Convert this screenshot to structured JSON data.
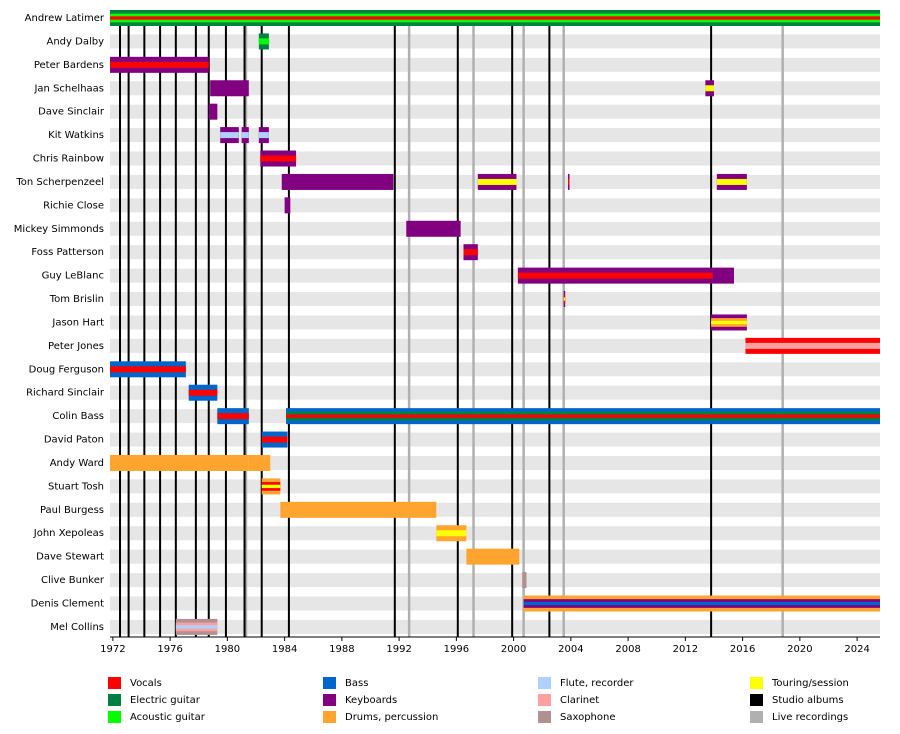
{
  "chart_data": {
    "type": "timeline",
    "xlim": [
      1971.8,
      2025.6
    ],
    "xticks": [
      1972,
      1976,
      1980,
      1984,
      1988,
      1992,
      1996,
      2000,
      2004,
      2008,
      2012,
      2016,
      2020,
      2024
    ],
    "legend": [
      {
        "name": "Vocals",
        "color": "#ff0000"
      },
      {
        "name": "Electric guitar",
        "color": "#008040"
      },
      {
        "name": "Acoustic guitar",
        "color": "#00ff00"
      },
      {
        "name": "Bass",
        "color": "#0066cc"
      },
      {
        "name": "Keyboards",
        "color": "#800080"
      },
      {
        "name": "Drums, percussion",
        "color": "#ffa52f"
      },
      {
        "name": "Flute, recorder",
        "color": "#b0d0ff"
      },
      {
        "name": "Clarinet",
        "color": "#ffa0a0"
      },
      {
        "name": "Saxophone",
        "color": "#b09090"
      },
      {
        "name": "Touring/session",
        "color": "#ffff00"
      },
      {
        "name": "Studio albums",
        "color": "#000000"
      },
      {
        "name": "Live recordings",
        "color": "#b0b0b0"
      }
    ],
    "studio_albums": [
      1972.5,
      1973.1,
      1974.2,
      1975.3,
      1976.4,
      1977.8,
      1978.7,
      1979.9,
      1981.2,
      1982.4,
      1984.3,
      1991.7,
      1996.1,
      1999.9,
      2002.5,
      2013.8
    ],
    "live_recordings": [
      1981.3,
      1992.7,
      1997.2,
      2000.7,
      2003.5,
      2018.8
    ],
    "members": [
      {
        "name": "Andrew Latimer",
        "spans": [
          {
            "start": 1971.8,
            "end": 2025.6,
            "roles": [
              "Electric guitar",
              "Acoustic guitar",
              "Vocals"
            ]
          }
        ]
      },
      {
        "name": "Andy Dalby",
        "spans": [
          {
            "start": 1982.2,
            "end": 1982.9,
            "roles": [
              "Electric guitar",
              "Acoustic guitar"
            ]
          }
        ]
      },
      {
        "name": "Peter Bardens",
        "spans": [
          {
            "start": 1971.8,
            "end": 1978.7,
            "roles": [
              "Keyboards",
              "Vocals"
            ]
          }
        ]
      },
      {
        "name": "Jan Schelhaas",
        "spans": [
          {
            "start": 1978.8,
            "end": 1981.5,
            "roles": [
              "Keyboards"
            ]
          },
          {
            "start": 2013.4,
            "end": 2014.0,
            "roles": [
              "Keyboards",
              "Touring/session"
            ]
          }
        ]
      },
      {
        "name": "Dave Sinclair",
        "spans": [
          {
            "start": 1978.7,
            "end": 1979.3,
            "roles": [
              "Keyboards"
            ]
          }
        ]
      },
      {
        "name": "Kit Watkins",
        "spans": [
          {
            "start": 1979.5,
            "end": 1980.8,
            "roles": [
              "Keyboards",
              "Flute, recorder"
            ]
          },
          {
            "start": 1981.0,
            "end": 1981.5,
            "roles": [
              "Keyboards",
              "Flute, recorder"
            ]
          },
          {
            "start": 1982.2,
            "end": 1982.9,
            "roles": [
              "Keyboards",
              "Flute, recorder"
            ]
          }
        ]
      },
      {
        "name": "Chris Rainbow",
        "spans": [
          {
            "start": 1982.3,
            "end": 1984.8,
            "roles": [
              "Keyboards",
              "Vocals"
            ]
          }
        ]
      },
      {
        "name": "Ton Scherpenzeel",
        "spans": [
          {
            "start": 1983.8,
            "end": 1991.6,
            "roles": [
              "Keyboards"
            ]
          },
          {
            "start": 1997.5,
            "end": 2000.2,
            "roles": [
              "Keyboards",
              "Touring/session"
            ]
          },
          {
            "start": 2003.8,
            "end": 2003.9,
            "roles": [
              "Keyboards",
              "Vocals"
            ]
          },
          {
            "start": 2014.2,
            "end": 2016.3,
            "roles": [
              "Keyboards",
              "Touring/session"
            ]
          }
        ]
      },
      {
        "name": "Richie Close",
        "spans": [
          {
            "start": 1984.0,
            "end": 1984.4,
            "roles": [
              "Keyboards"
            ]
          }
        ]
      },
      {
        "name": "Mickey Simmonds",
        "spans": [
          {
            "start": 1992.5,
            "end": 1996.3,
            "roles": [
              "Keyboards"
            ]
          }
        ]
      },
      {
        "name": "Foss Patterson",
        "spans": [
          {
            "start": 1996.5,
            "end": 1997.5,
            "roles": [
              "Keyboards",
              "Vocals"
            ]
          }
        ]
      },
      {
        "name": "Guy LeBlanc",
        "spans": [
          {
            "start": 2000.3,
            "end": 2013.9,
            "roles": [
              "Keyboards",
              "Vocals"
            ]
          },
          {
            "start": 2013.9,
            "end": 2015.4,
            "roles": [
              "Keyboards"
            ]
          }
        ]
      },
      {
        "name": "Tom Brislin",
        "spans": [
          {
            "start": 2003.5,
            "end": 2003.6,
            "roles": [
              "Keyboards",
              "Vocals",
              "Touring/session"
            ]
          }
        ]
      },
      {
        "name": "Jason Hart",
        "spans": [
          {
            "start": 2013.8,
            "end": 2016.3,
            "roles": [
              "Keyboards",
              "Drums, percussion",
              "Touring/session"
            ]
          }
        ]
      },
      {
        "name": "Peter Jones",
        "spans": [
          {
            "start": 2016.2,
            "end": 2025.6,
            "roles": [
              "Vocals",
              "Clarinet"
            ]
          }
        ]
      },
      {
        "name": "Doug Ferguson",
        "spans": [
          {
            "start": 1971.8,
            "end": 1977.1,
            "roles": [
              "Bass",
              "Vocals"
            ]
          }
        ]
      },
      {
        "name": "Richard Sinclair",
        "spans": [
          {
            "start": 1977.3,
            "end": 1979.3,
            "roles": [
              "Bass",
              "Vocals"
            ]
          }
        ]
      },
      {
        "name": "Colin Bass",
        "spans": [
          {
            "start": 1979.3,
            "end": 1981.5,
            "roles": [
              "Bass",
              "Vocals"
            ]
          },
          {
            "start": 1984.1,
            "end": 2025.6,
            "roles": [
              "Bass",
              "Electric guitar",
              "Vocals"
            ]
          }
        ]
      },
      {
        "name": "David Paton",
        "spans": [
          {
            "start": 1982.4,
            "end": 1984.2,
            "roles": [
              "Bass",
              "Vocals"
            ]
          }
        ]
      },
      {
        "name": "Andy Ward",
        "spans": [
          {
            "start": 1971.8,
            "end": 1981.5,
            "roles": [
              "Drums, percussion"
            ]
          },
          {
            "start": 1981.5,
            "end": 1983.0,
            "roles": [
              "Drums, percussion"
            ]
          }
        ]
      },
      {
        "name": "Stuart Tosh",
        "spans": [
          {
            "start": 1982.4,
            "end": 1983.7,
            "roles": [
              "Drums, percussion",
              "Vocals",
              "Touring/session"
            ]
          }
        ]
      },
      {
        "name": "Paul Burgess",
        "spans": [
          {
            "start": 1983.7,
            "end": 1994.6,
            "roles": [
              "Drums, percussion"
            ]
          }
        ]
      },
      {
        "name": "John Xepoleas",
        "spans": [
          {
            "start": 1994.6,
            "end": 1996.7,
            "roles": [
              "Drums, percussion",
              "Touring/session"
            ]
          }
        ]
      },
      {
        "name": "Dave Stewart",
        "spans": [
          {
            "start": 1996.7,
            "end": 2000.4,
            "roles": [
              "Drums, percussion"
            ]
          }
        ]
      },
      {
        "name": "Clive Bunker",
        "spans": [
          {
            "start": 2000.6,
            "end": 2000.9,
            "roles": [
              "Saxophone"
            ]
          }
        ]
      },
      {
        "name": "Denis Clement",
        "spans": [
          {
            "start": 2000.7,
            "end": 2025.6,
            "roles": [
              "Drums, percussion",
              "Keyboards",
              "Bass"
            ]
          }
        ]
      },
      {
        "name": "Mel Collins",
        "spans": [
          {
            "start": 1976.4,
            "end": 1979.3,
            "roles": [
              "Saxophone",
              "Clarinet",
              "Flute, recorder"
            ]
          }
        ]
      }
    ]
  }
}
